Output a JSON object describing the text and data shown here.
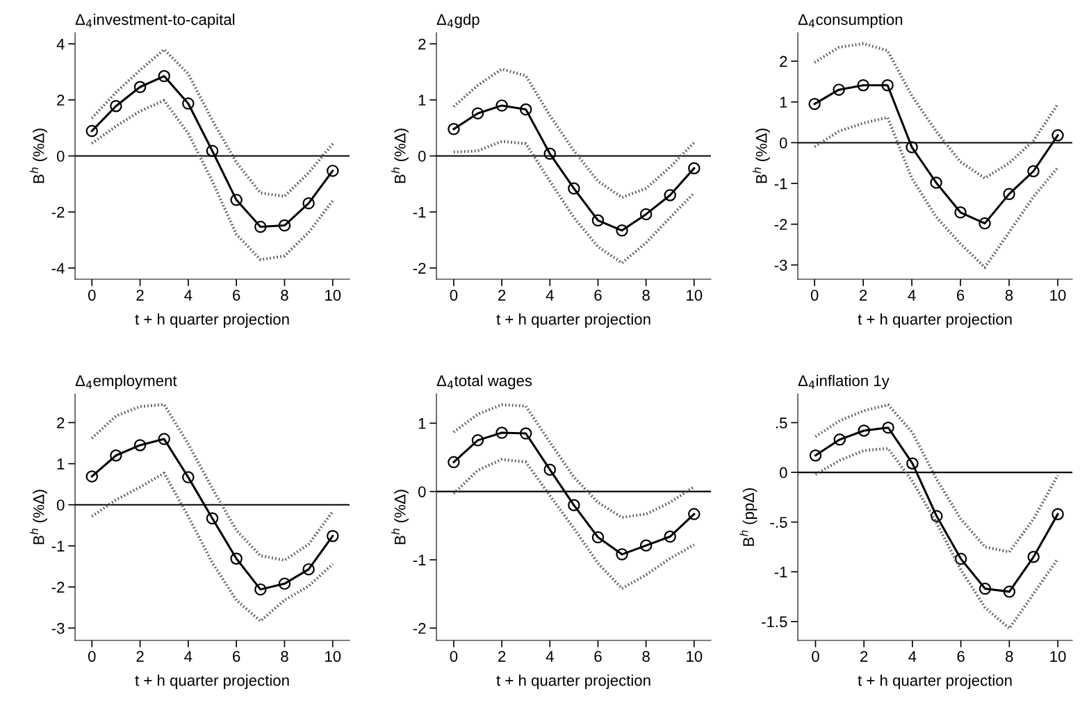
{
  "chart_data": [
    {
      "type": "line",
      "title": "Δ$_{4}$investment-to-capital",
      "xlabel": "t + h quarter projection",
      "ylabel": "B$^{h}$ (%Δ)",
      "x": [
        0,
        1,
        2,
        3,
        4,
        5,
        6,
        7,
        8,
        9,
        10
      ],
      "xlim": [
        -0.7,
        10.7
      ],
      "xticks": [
        0,
        2,
        4,
        6,
        8,
        10
      ],
      "ylim": [
        -4.4,
        4.4
      ],
      "yticks": [
        -4,
        -2,
        0,
        2,
        4
      ],
      "marker": "circle",
      "line_style": "solid",
      "grid": false,
      "legend": false,
      "series": [
        {
          "color": "#000000",
          "values": [
            0.89,
            1.78,
            2.46,
            2.85,
            1.87,
            0.18,
            -1.57,
            -2.53,
            -2.48,
            -1.69,
            -0.53
          ]
        },
        {
          "color": "#555555",
          "line_style": "dotted",
          "marker": "none",
          "values": [
            0.45,
            1.06,
            1.6,
            1.98,
            0.8,
            -0.9,
            -2.8,
            -3.7,
            -3.57,
            -2.73,
            -1.6
          ]
        },
        {
          "color": "#555555",
          "line_style": "dotted",
          "marker": "none",
          "values": [
            1.35,
            2.27,
            3.06,
            3.8,
            2.93,
            1.27,
            -0.23,
            -1.32,
            -1.44,
            -0.6,
            0.43
          ]
        }
      ],
      "ref_lines": [
        {
          "axis": "y",
          "value": 0,
          "color": "#000000",
          "line_style": "solid"
        }
      ]
    },
    {
      "type": "line",
      "title": "Δ$_{4}$gdp",
      "xlabel": "t + h quarter projection",
      "ylabel": "B$^{h}$ (%Δ)",
      "x": [
        0,
        1,
        2,
        3,
        4,
        5,
        6,
        7,
        8,
        9,
        10
      ],
      "xlim": [
        -0.72,
        10.7
      ],
      "xticks": [
        0,
        2,
        4,
        6,
        8,
        10
      ],
      "ylim": [
        -2.2,
        2.2
      ],
      "yticks": [
        -2,
        -1,
        0,
        1,
        2
      ],
      "marker": "circle",
      "line_style": "solid",
      "grid": false,
      "legend": false,
      "series": [
        {
          "color": "#000000",
          "values": [
            0.48,
            0.76,
            0.9,
            0.83,
            0.04,
            -0.58,
            -1.15,
            -1.33,
            -1.04,
            -0.7,
            -0.22
          ]
        },
        {
          "color": "#555555",
          "line_style": "dotted",
          "marker": "none",
          "values": [
            0.07,
            0.09,
            0.26,
            0.22,
            -0.45,
            -1.1,
            -1.62,
            -1.91,
            -1.55,
            -1.1,
            -0.66
          ]
        },
        {
          "color": "#555555",
          "line_style": "dotted",
          "marker": "none",
          "values": [
            0.88,
            1.26,
            1.55,
            1.43,
            0.72,
            0.09,
            -0.45,
            -0.74,
            -0.58,
            -0.2,
            0.24
          ]
        }
      ],
      "ref_lines": [
        {
          "axis": "y",
          "value": 0,
          "color": "#000000",
          "line_style": "solid"
        }
      ]
    },
    {
      "type": "line",
      "title": "Δ$_{4}$consumption",
      "xlabel": "t + h quarter projection",
      "ylabel": "B$^{h}$ (%Δ)",
      "x": [
        0,
        1,
        2,
        3,
        4,
        5,
        6,
        7,
        8,
        9,
        10
      ],
      "xlim": [
        -0.69,
        10.6
      ],
      "xticks": [
        0,
        2,
        4,
        6,
        8,
        10
      ],
      "ylim": [
        -3.35,
        2.7
      ],
      "yticks": [
        -3,
        -2,
        -1,
        0,
        1,
        2
      ],
      "marker": "circle",
      "line_style": "solid",
      "grid": false,
      "legend": false,
      "series": [
        {
          "color": "#000000",
          "values": [
            0.95,
            1.3,
            1.41,
            1.41,
            -0.11,
            -0.98,
            -1.71,
            -1.98,
            -1.26,
            -0.7,
            0.18
          ]
        },
        {
          "color": "#555555",
          "line_style": "dotted",
          "marker": "none",
          "values": [
            -0.1,
            0.28,
            0.48,
            0.62,
            -0.87,
            -1.82,
            -2.48,
            -3.06,
            -2.2,
            -1.33,
            -0.61
          ]
        },
        {
          "color": "#555555",
          "line_style": "dotted",
          "marker": "none",
          "values": [
            1.97,
            2.34,
            2.43,
            2.26,
            1.15,
            0.28,
            -0.47,
            -0.87,
            -0.5,
            0.05,
            0.94
          ]
        }
      ],
      "ref_lines": [
        {
          "axis": "y",
          "value": 0,
          "color": "#000000",
          "line_style": "solid"
        }
      ]
    },
    {
      "type": "line",
      "title": "Δ$_{4}$employment",
      "xlabel": "t + h quarter projection",
      "ylabel": "B$^{h}$ (%Δ)",
      "x": [
        0,
        1,
        2,
        3,
        4,
        5,
        6,
        7,
        8,
        9,
        10
      ],
      "xlim": [
        -0.7,
        10.7
      ],
      "xticks": [
        0,
        2,
        4,
        6,
        8,
        10
      ],
      "ylim": [
        -3.3,
        2.7
      ],
      "yticks": [
        -3,
        -2,
        -1,
        0,
        1,
        2
      ],
      "marker": "circle",
      "line_style": "solid",
      "grid": false,
      "legend": false,
      "series": [
        {
          "color": "#000000",
          "values": [
            0.69,
            1.2,
            1.45,
            1.6,
            0.67,
            -0.33,
            -1.31,
            -2.06,
            -1.92,
            -1.57,
            -0.76
          ]
        },
        {
          "color": "#555555",
          "line_style": "dotted",
          "marker": "none",
          "values": [
            -0.28,
            0.12,
            0.43,
            0.77,
            -0.28,
            -1.41,
            -2.32,
            -2.83,
            -2.32,
            -1.98,
            -1.44
          ]
        },
        {
          "color": "#555555",
          "line_style": "dotted",
          "marker": "none",
          "values": [
            1.62,
            2.16,
            2.39,
            2.44,
            1.48,
            0.4,
            -0.62,
            -1.24,
            -1.35,
            -0.96,
            -0.16
          ]
        }
      ],
      "ref_lines": [
        {
          "axis": "y",
          "value": 0,
          "color": "#000000",
          "line_style": "solid"
        }
      ]
    },
    {
      "type": "line",
      "title": "Δ$_{4}$total wages",
      "xlabel": "t + h quarter projection",
      "ylabel": "B$^{h}$ (%Δ)",
      "x": [
        0,
        1,
        2,
        3,
        4,
        5,
        6,
        7,
        8,
        9,
        10
      ],
      "xlim": [
        -0.72,
        10.7
      ],
      "xticks": [
        0,
        2,
        4,
        6,
        8,
        10
      ],
      "ylim": [
        -2.18,
        1.43
      ],
      "yticks": [
        -2,
        -1,
        0,
        1
      ],
      "marker": "circle",
      "line_style": "solid",
      "grid": false,
      "legend": false,
      "series": [
        {
          "color": "#000000",
          "values": [
            0.43,
            0.75,
            0.86,
            0.85,
            0.32,
            -0.2,
            -0.67,
            -0.92,
            -0.79,
            -0.66,
            -0.33
          ]
        },
        {
          "color": "#555555",
          "line_style": "dotted",
          "marker": "none",
          "values": [
            -0.03,
            0.31,
            0.47,
            0.43,
            -0.06,
            -0.54,
            -1.05,
            -1.42,
            -1.22,
            -0.98,
            -0.78
          ]
        },
        {
          "color": "#555555",
          "line_style": "dotted",
          "marker": "none",
          "values": [
            0.87,
            1.13,
            1.27,
            1.25,
            0.72,
            0.21,
            -0.16,
            -0.38,
            -0.33,
            -0.16,
            0.07
          ]
        }
      ],
      "ref_lines": [
        {
          "axis": "y",
          "value": 0,
          "color": "#000000",
          "line_style": "solid"
        }
      ]
    },
    {
      "type": "line",
      "title": "Δ$_{4}$inflation 1y",
      "xlabel": "t + h quarter projection",
      "ylabel": "B$^{h}$ (ppΔ)",
      "x": [
        0,
        1,
        2,
        3,
        4,
        5,
        6,
        7,
        8,
        9,
        10
      ],
      "xlim": [
        -0.73,
        10.6
      ],
      "xticks": [
        0,
        2,
        4,
        6,
        8,
        10
      ],
      "ylim": [
        -1.69,
        0.79
      ],
      "yticks": [
        {
          "value": -1.5,
          "label": "-1.5"
        },
        {
          "value": -1,
          "label": "-1"
        },
        {
          "value": -0.5,
          "label": "-.5"
        },
        0,
        {
          "value": 0.5,
          "label": ".5"
        }
      ],
      "marker": "circle",
      "line_style": "solid",
      "grid": false,
      "legend": false,
      "series": [
        {
          "color": "#000000",
          "values": [
            0.17,
            0.33,
            0.42,
            0.45,
            0.09,
            -0.44,
            -0.87,
            -1.17,
            -1.2,
            -0.85,
            -0.42
          ]
        },
        {
          "color": "#555555",
          "line_style": "dotted",
          "marker": "none",
          "values": [
            -0.02,
            0.12,
            0.22,
            0.24,
            -0.09,
            -0.51,
            -0.98,
            -1.36,
            -1.57,
            -1.22,
            -0.87
          ]
        },
        {
          "color": "#555555",
          "line_style": "dotted",
          "marker": "none",
          "values": [
            0.36,
            0.52,
            0.62,
            0.68,
            0.4,
            -0.07,
            -0.47,
            -0.75,
            -0.8,
            -0.47,
            -0.03
          ]
        }
      ],
      "ref_lines": [
        {
          "axis": "y",
          "value": 0,
          "color": "#000000",
          "line_style": "solid"
        }
      ]
    }
  ]
}
